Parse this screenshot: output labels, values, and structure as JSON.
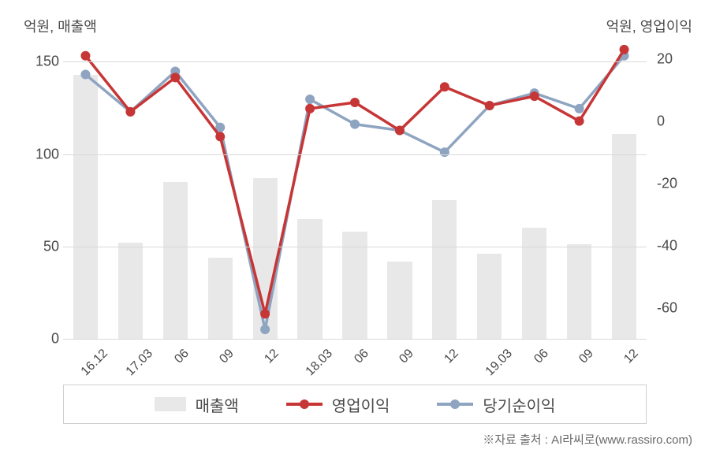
{
  "chart": {
    "type": "bar-line-combo",
    "left_axis": {
      "label": "억원, 매출액",
      "min": 0,
      "max": 160,
      "ticks": [
        0,
        50,
        100,
        150
      ],
      "fontsize": 18,
      "color": "#4a4a4a"
    },
    "right_axis": {
      "label": "억원, 영업이익",
      "min": -70,
      "max": 25,
      "ticks": [
        -60,
        -40,
        -20,
        0,
        20
      ],
      "fontsize": 18,
      "color": "#4a4a4a"
    },
    "categories": [
      "16.12",
      "17.03",
      "06",
      "09",
      "12",
      "18.03",
      "06",
      "09",
      "12",
      "19.03",
      "06",
      "09",
      "12"
    ],
    "bars": {
      "label": "매출액",
      "values": [
        143,
        52,
        85,
        44,
        87,
        65,
        58,
        42,
        75,
        46,
        60,
        51,
        111
      ],
      "color": "#e8e8e8",
      "width_ratio": 0.55
    },
    "line1": {
      "label": "영업이익",
      "values": [
        21,
        3,
        14,
        -5,
        -62,
        4,
        6,
        -3,
        11,
        5,
        8,
        0,
        23
      ],
      "color": "#c73636",
      "line_width": 3.5,
      "marker_size": 6
    },
    "line2": {
      "label": "당기순이익",
      "values": [
        15,
        3,
        16,
        -2,
        -67,
        7,
        -1,
        -3,
        -10,
        5,
        9,
        4,
        21
      ],
      "color": "#8ea4c0",
      "line_width": 3.5,
      "marker_size": 6
    },
    "grid_color": "#d9d9d9",
    "background": "#ffffff",
    "xtick_fontsize": 16,
    "legend_fontsize": 20
  },
  "source": "※자료 출처 : AI라씨로(www.rassiro.com)"
}
